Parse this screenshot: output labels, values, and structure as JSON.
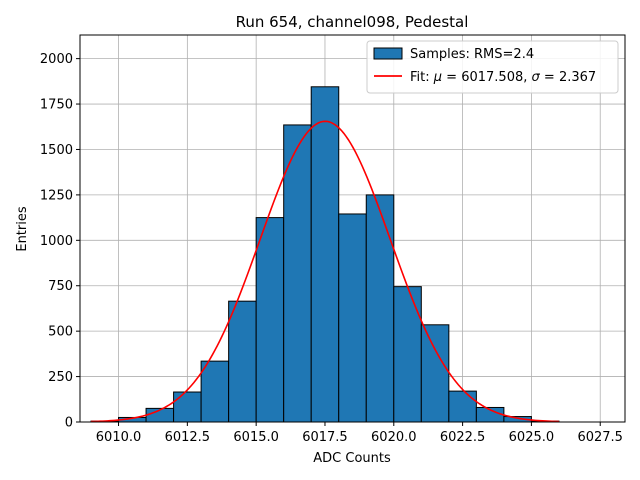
{
  "chart_data": {
    "type": "bar",
    "title": "Run 654, channel098, Pedestal",
    "xlabel": "ADC Counts",
    "ylabel": "Entries",
    "xlim": [
      6008.6,
      6028.4
    ],
    "ylim": [
      0,
      2130
    ],
    "grid": true,
    "legend_position": "top-right",
    "x_ticks": [
      6010.0,
      6012.5,
      6015.0,
      6017.5,
      6020.0,
      6022.5,
      6025.0,
      6027.5
    ],
    "x_tick_labels": [
      "6010.0",
      "6012.5",
      "6015.0",
      "6017.5",
      "6020.0",
      "6022.5",
      "6025.0",
      "6027.5"
    ],
    "y_ticks": [
      0,
      250,
      500,
      750,
      1000,
      1250,
      1500,
      1750,
      2000
    ],
    "y_tick_labels": [
      "0",
      "250",
      "500",
      "750",
      "1000",
      "1250",
      "1500",
      "1750",
      "2000"
    ],
    "histogram": {
      "name": "Samples: RMS=2.4",
      "bin_edges": [
        6009,
        6010,
        6011,
        6012,
        6013,
        6014,
        6015,
        6016,
        6017,
        6018,
        6019,
        6020,
        6021,
        6022,
        6023,
        6024,
        6025,
        6026
      ],
      "values": [
        5,
        25,
        75,
        165,
        335,
        665,
        1125,
        1635,
        1845,
        1145,
        1250,
        745,
        535,
        170,
        80,
        30,
        5
      ],
      "color": "#1f77b4",
      "edgecolor": "#000000"
    },
    "fit": {
      "name_prefix": "Fit: ",
      "mu_label": "μ",
      "mu_value": "6017.508",
      "sigma_label": "σ",
      "sigma_value": "2.367",
      "mu": 6017.508,
      "sigma": 2.367,
      "amplitude": 1655,
      "x_range": [
        6009,
        6026
      ],
      "color": "#ff0000"
    }
  }
}
